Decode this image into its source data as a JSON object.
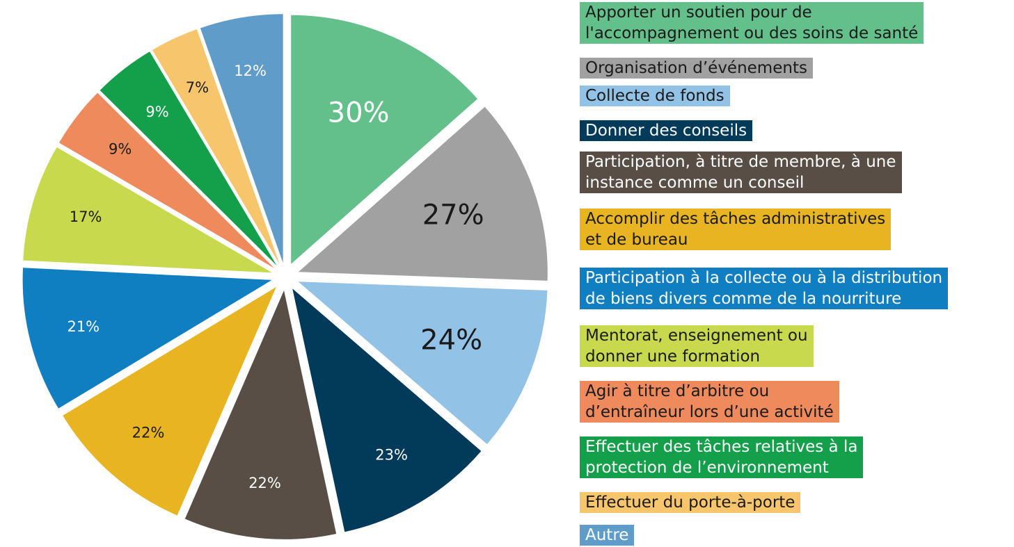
{
  "chart_data": {
    "type": "pie",
    "categories": [
      "Apporter un soutien pour de\nl'accompagnement ou des soins de santé",
      "Organisation d’événements",
      "Collecte de fonds",
      "Donner des conseils",
      "Participation, à titre de membre, à une\ninstance comme un conseil",
      "Accomplir des tâches administratives\net de bureau",
      "Participation à la collecte ou à la distribution\nde biens divers comme de la nourriture",
      "Mentorat, enseignement ou\ndonner une formation",
      "Agir à titre d’arbitre ou\nd’entraîneur lors d’une activité",
      "Effectuer des tâches relatives à la\nprotection de l’environnement",
      "Effectuer du porte-à-porte",
      "Autre"
    ],
    "values": [
      30,
      27,
      24,
      23,
      22,
      22,
      21,
      17,
      9,
      9,
      7,
      12
    ],
    "value_labels": [
      "30%",
      "27%",
      "24%",
      "23%",
      "22%",
      "22%",
      "21%",
      "17%",
      "9%",
      "9%",
      "7%",
      "12%"
    ],
    "colors": [
      "#63c08a",
      "#a0a1a0",
      "#93c2e7",
      "#023a5a",
      "#584e46",
      "#e8b422",
      "#0f7fc1",
      "#c9d94d",
      "#ef8a5c",
      "#14a04a",
      "#f7c56b",
      "#5f9cca"
    ],
    "label_colors": [
      "#ffffff",
      "#1a1a1a",
      "#1a1a1a",
      "#ffffff",
      "#ffffff",
      "#1a1a1a",
      "#ffffff",
      "#1a1a1a",
      "#1a1a1a",
      "#ffffff",
      "#1a1a1a",
      "#ffffff"
    ],
    "legend_text_colors": [
      "#1a1a1a",
      "#1a1a1a",
      "#1a1a1a",
      "#ffffff",
      "#ffffff",
      "#1a1a1a",
      "#ffffff",
      "#1a1a1a",
      "#1a1a1a",
      "#ffffff",
      "#1a1a1a",
      "#ffffff"
    ]
  }
}
